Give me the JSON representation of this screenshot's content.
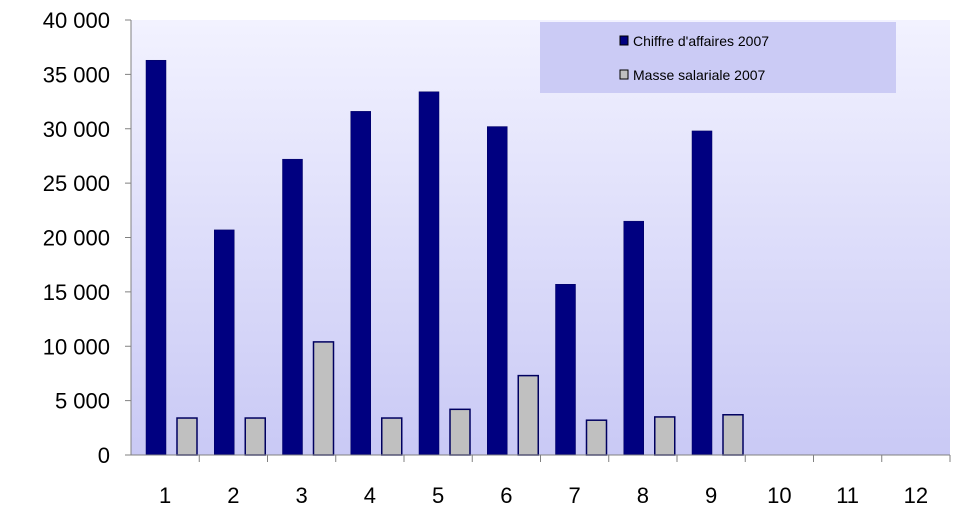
{
  "chart_data": {
    "type": "bar",
    "categories": [
      "1",
      "2",
      "3",
      "4",
      "5",
      "6",
      "7",
      "8",
      "9",
      "10",
      "11",
      "12"
    ],
    "series": [
      {
        "name": "Chiffre d'affaires 2007",
        "color": "#000080",
        "values": [
          36300,
          20700,
          27200,
          31600,
          33400,
          30200,
          15700,
          21500,
          29800,
          null,
          null,
          null
        ]
      },
      {
        "name": "Masse salariale 2007",
        "color": "#c0c0c0",
        "values": [
          3400,
          3400,
          10400,
          3400,
          4200,
          7300,
          3200,
          3500,
          3700,
          null,
          null,
          null
        ]
      }
    ],
    "ylim": [
      0,
      40000
    ],
    "y_ticks": [
      0,
      5000,
      10000,
      15000,
      20000,
      25000,
      30000,
      35000,
      40000
    ],
    "y_tick_labels": [
      "0",
      "5 000",
      "10 000",
      "15 000",
      "20 000",
      "25 000",
      "30 000",
      "35 000",
      "40 000"
    ],
    "legend_position": "top-right",
    "grid": false,
    "plot_background": [
      "#f2f2ff",
      "#c9c9f5"
    ]
  }
}
